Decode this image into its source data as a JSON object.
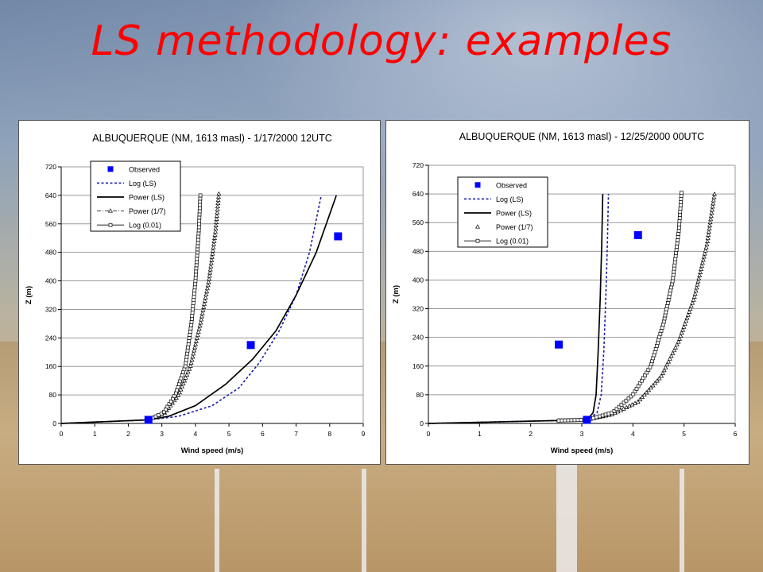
{
  "slide": {
    "title": "LS methodology: examples"
  },
  "chart_data": [
    {
      "type": "line",
      "title": "ALBUQUERQUE (NM, 1613 masl) - 1/17/2000 12UTC",
      "xlabel": "Wind speed (m/s)",
      "ylabel": "Z (m)",
      "xlim": [
        0,
        9
      ],
      "ylim": [
        0,
        720
      ],
      "xticks": [
        0,
        1,
        2,
        3,
        4,
        5,
        6,
        7,
        8,
        9
      ],
      "yticks": [
        0,
        80,
        160,
        240,
        320,
        400,
        480,
        560,
        640,
        720
      ],
      "grid": "horizontal",
      "legend_position": "top-left",
      "legend": [
        "Observed",
        "Log (LS)",
        "Power (LS)",
        "Power (1/7)",
        "Log (0.01)"
      ],
      "observed": {
        "x": [
          2.6,
          5.65,
          8.25
        ],
        "y": [
          10,
          220,
          525
        ]
      },
      "series": [
        {
          "name": "Log (LS)",
          "style": "dotted",
          "x": [
            0,
            2.6,
            3.5,
            4.5,
            5.3,
            5.9,
            6.5,
            7.0,
            7.4,
            7.75
          ],
          "y": [
            0,
            10,
            20,
            50,
            100,
            170,
            260,
            360,
            480,
            640
          ]
        },
        {
          "name": "Power (LS)",
          "style": "solid",
          "x": [
            0,
            2.6,
            3.2,
            4.0,
            4.9,
            5.7,
            6.4,
            7.0,
            7.6,
            8.2
          ],
          "y": [
            0,
            10,
            20,
            50,
            110,
            180,
            260,
            360,
            480,
            640
          ]
        },
        {
          "name": "Power (1/7)",
          "style": "triangles",
          "x": [
            0,
            2.6,
            3.1,
            3.5,
            3.85,
            4.15,
            4.4,
            4.6,
            4.7
          ],
          "y": [
            0,
            10,
            30,
            80,
            160,
            280,
            400,
            540,
            645
          ]
        },
        {
          "name": "Log (0.01)",
          "style": "squares",
          "x": [
            0,
            2.6,
            3.05,
            3.4,
            3.7,
            3.88,
            4.0,
            4.1,
            4.15
          ],
          "y": [
            0,
            10,
            30,
            80,
            160,
            280,
            400,
            540,
            645
          ]
        }
      ]
    },
    {
      "type": "line",
      "title": "ALBUQUERQUE (NM, 1613 masl) - 12/25/2000 00UTC",
      "xlabel": "Wind speed (m/s)",
      "ylabel": "Z (m)",
      "xlim": [
        0,
        6
      ],
      "ylim": [
        0,
        720
      ],
      "xticks": [
        0,
        1,
        2,
        3,
        4,
        5,
        6
      ],
      "yticks": [
        0,
        80,
        160,
        240,
        320,
        400,
        480,
        560,
        640,
        720
      ],
      "grid": "horizontal",
      "legend_position": "top-left",
      "legend": [
        "Observed",
        "Log (LS)",
        "Power (LS)",
        "Power (1/7)",
        "Log (0.01)"
      ],
      "observed": {
        "x": [
          3.1,
          2.55,
          4.1
        ],
        "y": [
          10,
          220,
          525
        ]
      },
      "series": [
        {
          "name": "Log (LS)",
          "style": "dotted",
          "x": [
            0,
            3.1,
            3.3,
            3.38,
            3.43,
            3.47,
            3.5,
            3.52
          ],
          "y": [
            0,
            10,
            30,
            80,
            200,
            350,
            500,
            640
          ]
        },
        {
          "name": "Power (LS)",
          "style": "solid",
          "x": [
            0,
            3.1,
            3.22,
            3.28,
            3.32,
            3.36,
            3.39,
            3.41
          ],
          "y": [
            0,
            10,
            30,
            80,
            200,
            350,
            500,
            640
          ]
        },
        {
          "name": "Power (1/7)",
          "style": "triangles",
          "x": [
            0,
            3.1,
            3.6,
            4.1,
            4.55,
            4.9,
            5.2,
            5.45,
            5.6
          ],
          "y": [
            0,
            10,
            25,
            60,
            130,
            230,
            350,
            500,
            645
          ]
        },
        {
          "name": "Log (0.01)",
          "style": "squares",
          "x": [
            0,
            3.1,
            3.6,
            4.0,
            4.35,
            4.6,
            4.78,
            4.9,
            4.95
          ],
          "y": [
            0,
            10,
            30,
            80,
            160,
            280,
            400,
            540,
            645
          ]
        }
      ]
    }
  ]
}
